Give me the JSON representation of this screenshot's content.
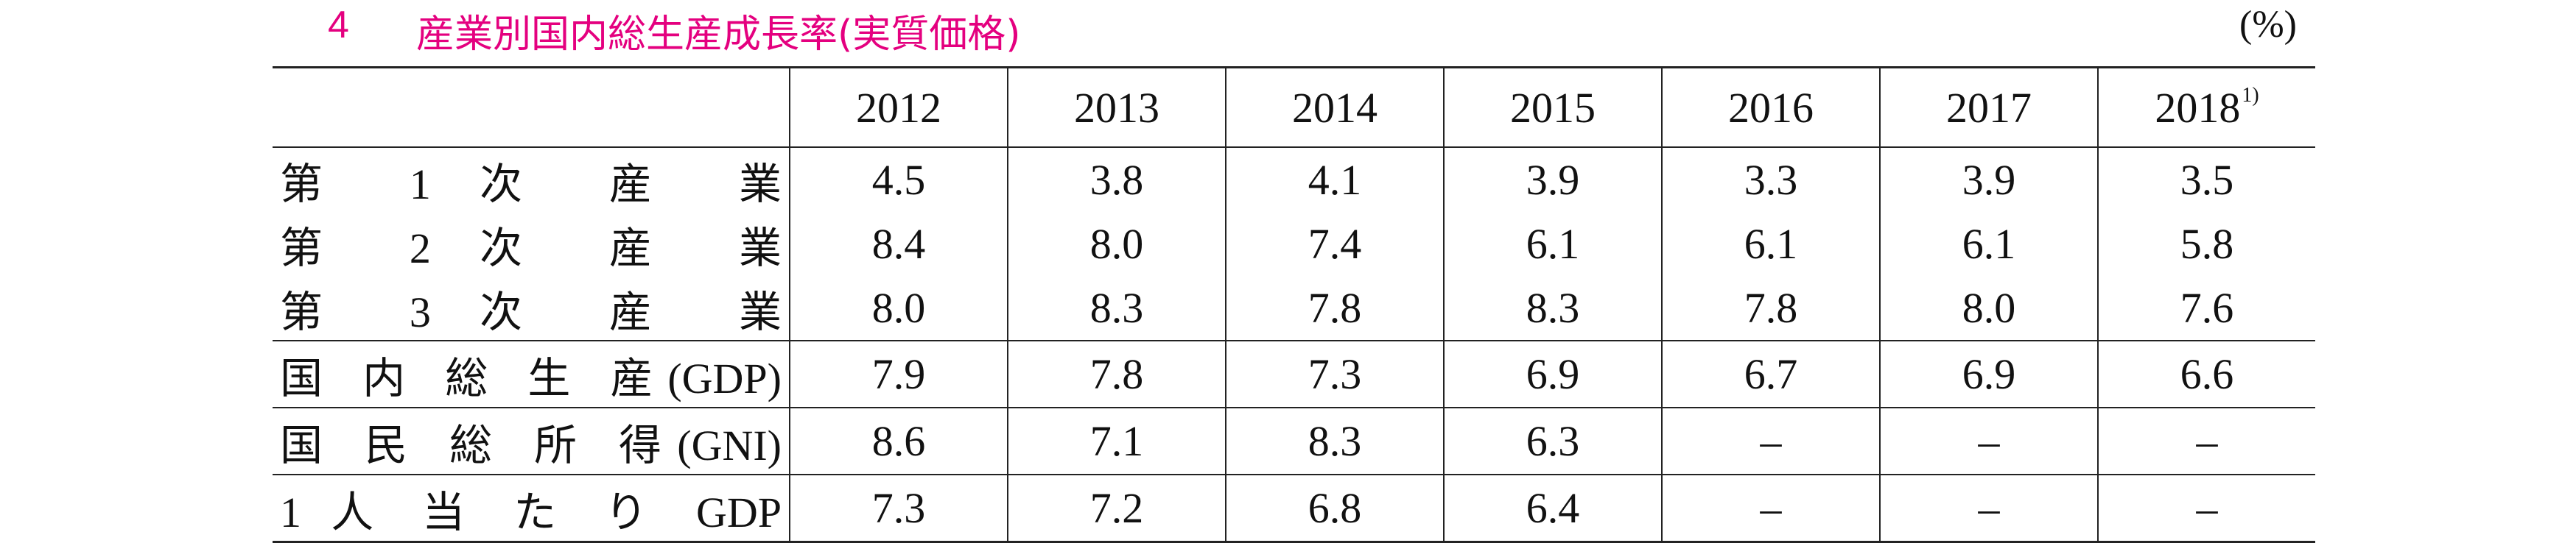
{
  "header": {
    "number": "4",
    "title": "産業別国内総生産成長率(実質価格)",
    "unit": "(%)"
  },
  "table": {
    "columns": [
      {
        "text": "2012"
      },
      {
        "text": "2013"
      },
      {
        "text": "2014"
      },
      {
        "text": "2015"
      },
      {
        "text": "2016"
      },
      {
        "text": "2017"
      },
      {
        "text": "2018",
        "note": "1)"
      }
    ],
    "rows": [
      {
        "label": "第 1 次 産 業",
        "values": [
          "4.5",
          "3.8",
          "4.1",
          "3.9",
          "3.3",
          "3.9",
          "3.5"
        ]
      },
      {
        "label": "第 2 次 産 業",
        "values": [
          "8.4",
          "8.0",
          "7.4",
          "6.1",
          "6.1",
          "6.1",
          "5.8"
        ]
      },
      {
        "label": "第 3 次 産 業",
        "values": [
          "8.0",
          "8.3",
          "7.8",
          "8.3",
          "7.8",
          "8.0",
          "7.6"
        ]
      },
      {
        "label": "国 内 総 生 産(GDP)",
        "values": [
          "7.9",
          "7.8",
          "7.3",
          "6.9",
          "6.7",
          "6.9",
          "6.6"
        ]
      },
      {
        "label": "国 民 総 所 得(GNI)",
        "values": [
          "8.6",
          "7.1",
          "8.3",
          "6.3",
          "–",
          "–",
          "–"
        ]
      },
      {
        "label": "1 人 当 た り GDP",
        "values": [
          "7.3",
          "7.2",
          "6.8",
          "6.4",
          "–",
          "–",
          "–"
        ]
      }
    ]
  }
}
